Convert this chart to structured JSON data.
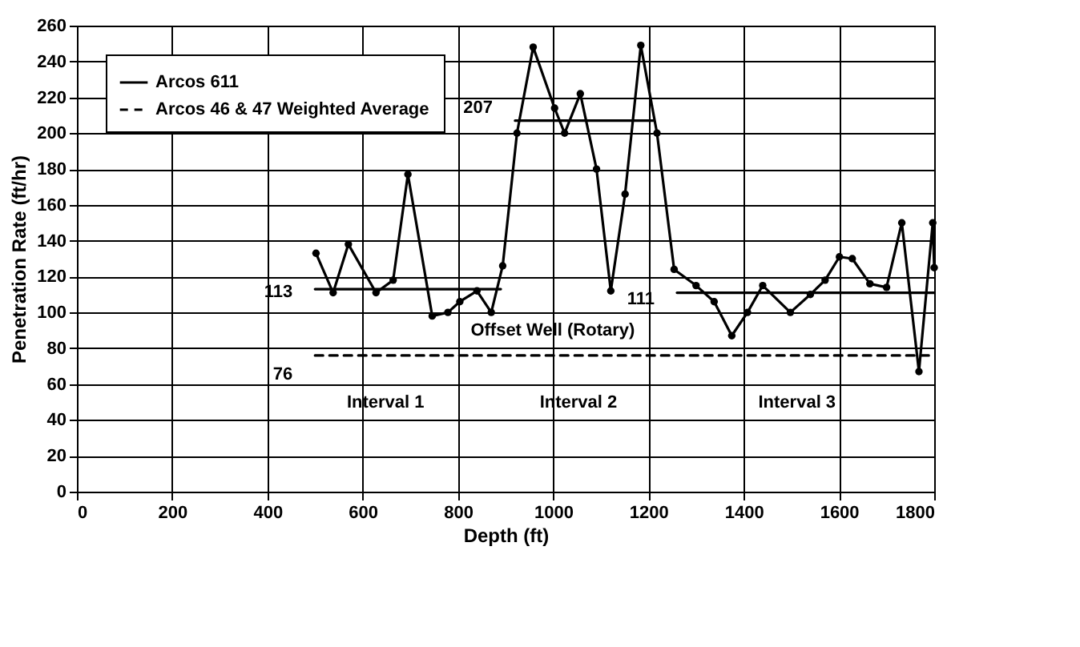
{
  "chart_data": {
    "type": "line",
    "xlabel": "Depth (ft)",
    "ylabel": "Penetration Rate (ft/hr)",
    "xlim": [
      0,
      1800
    ],
    "xticks": [
      0,
      200,
      400,
      600,
      800,
      1000,
      1200,
      1400,
      1600,
      1800
    ],
    "ylim": [
      0,
      260
    ],
    "yticks": [
      0,
      20,
      40,
      60,
      80,
      100,
      120,
      140,
      160,
      180,
      200,
      220,
      240,
      260
    ],
    "grid": true,
    "legend": "top left",
    "series": [
      {
        "name": "Arcos 611",
        "color": "#000000",
        "marker": "circle",
        "line_style": "solid",
        "x": [
          502,
          538,
          570,
          628,
          664,
          695,
          746,
          779,
          804,
          840,
          870,
          894,
          924,
          958,
          1003,
          1024,
          1057,
          1091,
          1121,
          1151,
          1184,
          1218,
          1254,
          1300,
          1338,
          1375,
          1408,
          1440,
          1498,
          1540,
          1571,
          1601,
          1628,
          1665,
          1700,
          1732,
          1768,
          1797,
          1800
        ],
        "values": [
          133,
          111,
          138,
          111,
          118,
          177,
          98,
          100,
          106,
          112,
          100,
          126,
          200,
          248,
          214,
          200,
          222,
          180,
          112,
          166,
          249,
          200,
          124,
          115,
          106,
          87,
          100,
          115,
          100,
          110,
          118,
          131,
          130,
          116,
          114,
          150,
          67,
          150,
          125
        ]
      },
      {
        "name": "Arcos 46 & 47 Weighted Average",
        "color": "#000000",
        "marker": "none",
        "line_style": "dashed",
        "x": [
          500,
          1800
        ],
        "values": [
          76,
          76
        ]
      },
      {
        "color": "#000000",
        "marker": "none",
        "line_style": "solid",
        "x": [
          500,
          890
        ],
        "values": [
          113,
          113
        ]
      },
      {
        "color": "#000000",
        "marker": "none",
        "line_style": "solid",
        "x": [
          920,
          1210
        ],
        "values": [
          207,
          207
        ]
      },
      {
        "color": "#000000",
        "marker": "none",
        "line_style": "solid",
        "x": [
          1260,
          1800
        ],
        "values": [
          111,
          111
        ]
      }
    ],
    "annotations": [
      {
        "text": "113",
        "x": 500,
        "y": 113
      },
      {
        "text": "207",
        "x": 920,
        "y": 207
      },
      {
        "text": "111",
        "x": 1260,
        "y": 111
      },
      {
        "text": "76",
        "x": 500,
        "y": 76
      },
      "Offset Well (Rotary)",
      "Interval 1",
      "Interval 2",
      "Interval 3"
    ]
  }
}
